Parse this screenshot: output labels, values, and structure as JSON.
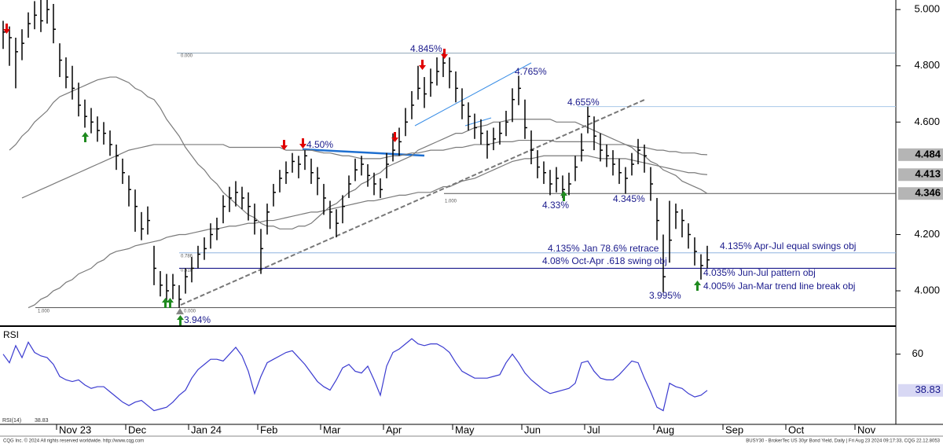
{
  "chart_data": {
    "type": "ohlc",
    "categories": [
      null,
      null,
      null,
      null,
      null,
      null,
      null,
      null,
      null,
      "Nov 23",
      null,
      null,
      null,
      null,
      null,
      null,
      null,
      null,
      null,
      null,
      "Dec",
      null,
      null,
      null,
      null,
      null,
      null,
      null,
      null,
      null,
      "Jan 24",
      null,
      null,
      null,
      null,
      null,
      null,
      null,
      null,
      null,
      null,
      "Feb",
      null,
      null,
      null,
      null,
      null,
      null,
      null,
      null,
      null,
      "Mar",
      null,
      null,
      null,
      null,
      null,
      null,
      null,
      null,
      null,
      "Apr",
      null,
      null,
      null,
      null,
      null,
      null,
      null,
      null,
      null,
      null,
      "May",
      null,
      null,
      null,
      null,
      null,
      null,
      null,
      null,
      null,
      null,
      "Jun",
      null,
      null,
      null,
      null,
      null,
      null,
      null,
      null,
      null,
      "Jul",
      null,
      null,
      null,
      null,
      null,
      null,
      null,
      null,
      null,
      null,
      "Aug",
      null,
      null,
      null,
      null,
      null,
      null,
      null,
      null,
      null,
      null,
      "Sep",
      null,
      null,
      null,
      null,
      null,
      null,
      null,
      null,
      null,
      "Oct",
      null,
      null,
      null,
      null,
      null,
      null,
      null,
      null,
      null,
      null,
      "Nov",
      null,
      null,
      null,
      null,
      null
    ],
    "high": [
      4.96,
      4.94,
      4.9,
      4.93,
      4.99,
      5.03,
      5.04,
      5.05,
      5.02,
      4.88,
      4.83,
      4.8,
      4.74,
      4.68,
      4.65,
      4.62,
      4.6,
      4.57,
      4.52,
      4.47,
      4.41,
      4.36,
      4.28,
      4.3,
      4.16,
      4.07,
      4.06,
      4.06,
      4.02,
      4.08,
      4.12,
      4.16,
      4.19,
      4.24,
      4.26,
      4.34,
      4.37,
      4.39,
      4.37,
      4.35,
      4.31,
      4.22,
      4.31,
      4.38,
      4.43,
      4.46,
      4.49,
      4.48,
      4.5,
      4.47,
      4.44,
      4.38,
      4.32,
      4.29,
      4.34,
      4.41,
      4.47,
      4.48,
      4.45,
      4.42,
      4.4,
      4.49,
      4.56,
      4.58,
      4.65,
      4.71,
      4.8,
      4.76,
      4.79,
      4.83,
      4.845,
      4.83,
      4.78,
      4.72,
      4.67,
      4.63,
      4.61,
      4.57,
      4.58,
      4.6,
      4.64,
      4.72,
      4.765,
      4.68,
      4.57,
      4.5,
      4.46,
      4.43,
      4.44,
      4.41,
      4.42,
      4.48,
      4.56,
      4.655,
      4.62,
      4.56,
      4.52,
      4.5,
      4.47,
      4.44,
      4.49,
      4.54,
      4.52,
      4.44,
      4.33,
      4.2,
      4.32,
      4.31,
      4.29,
      4.24,
      4.19,
      4.13,
      4.16,
      null,
      null,
      null,
      null,
      null,
      null,
      null,
      null,
      null,
      null,
      null,
      null,
      null,
      null,
      null,
      null,
      null,
      null,
      null,
      null,
      null,
      null,
      null,
      null,
      null,
      null,
      null,
      null,
      null
    ],
    "low": [
      4.86,
      4.8,
      4.72,
      4.82,
      4.9,
      4.93,
      4.92,
      4.95,
      4.88,
      4.76,
      4.72,
      4.68,
      4.62,
      4.58,
      4.56,
      4.53,
      4.52,
      4.48,
      4.43,
      4.38,
      4.3,
      4.21,
      4.18,
      4.2,
      4.02,
      3.98,
      3.96,
      3.97,
      3.94,
      3.99,
      4.03,
      4.08,
      4.11,
      4.15,
      4.18,
      4.24,
      4.28,
      4.3,
      4.29,
      4.25,
      4.2,
      4.06,
      4.2,
      4.3,
      4.35,
      4.38,
      4.42,
      4.4,
      4.43,
      4.38,
      4.34,
      4.27,
      4.22,
      4.19,
      4.24,
      4.33,
      4.39,
      4.41,
      4.37,
      4.34,
      4.33,
      4.4,
      4.46,
      4.48,
      4.55,
      4.61,
      4.68,
      4.65,
      4.69,
      4.73,
      4.76,
      4.72,
      4.67,
      4.61,
      4.57,
      4.54,
      4.52,
      4.47,
      4.5,
      4.52,
      4.55,
      4.6,
      4.66,
      4.54,
      4.45,
      4.4,
      4.38,
      4.34,
      4.35,
      4.33,
      4.34,
      4.39,
      4.46,
      4.56,
      4.5,
      4.46,
      4.44,
      4.41,
      4.38,
      4.345,
      4.41,
      4.45,
      4.42,
      4.32,
      4.18,
      3.995,
      4.1,
      4.22,
      4.19,
      4.15,
      4.09,
      4.04,
      4.08,
      null,
      null,
      null,
      null,
      null,
      null,
      null,
      null,
      null,
      null,
      null,
      null,
      null,
      null,
      null,
      null,
      null,
      null,
      null,
      null,
      null,
      null,
      null,
      null,
      null,
      null,
      null,
      null,
      null
    ],
    "close": [
      4.92,
      4.9,
      4.85,
      4.88,
      4.95,
      4.98,
      4.96,
      5.0,
      4.93,
      4.82,
      4.76,
      4.72,
      4.66,
      4.62,
      4.6,
      4.57,
      4.56,
      4.52,
      4.48,
      4.42,
      4.36,
      4.3,
      4.22,
      4.25,
      4.08,
      4.02,
      4.0,
      4.02,
      3.97,
      4.05,
      4.08,
      4.13,
      4.15,
      4.2,
      4.22,
      4.3,
      4.33,
      4.35,
      4.33,
      4.3,
      4.25,
      4.15,
      4.28,
      4.35,
      4.4,
      4.42,
      4.46,
      4.45,
      4.48,
      4.42,
      4.4,
      4.33,
      4.28,
      4.24,
      4.3,
      4.38,
      4.43,
      4.45,
      4.41,
      4.38,
      4.36,
      4.45,
      4.5,
      4.53,
      4.6,
      4.66,
      4.72,
      4.7,
      4.74,
      4.78,
      4.81,
      4.78,
      4.72,
      4.66,
      4.62,
      4.58,
      4.56,
      4.52,
      4.54,
      4.56,
      4.6,
      4.68,
      4.72,
      4.58,
      4.5,
      4.44,
      4.42,
      4.38,
      4.4,
      4.36,
      4.38,
      4.44,
      4.5,
      4.62,
      4.55,
      4.5,
      4.48,
      4.45,
      4.42,
      4.4,
      4.45,
      4.5,
      4.48,
      4.38,
      4.25,
      4.05,
      4.18,
      4.28,
      4.25,
      4.2,
      4.14,
      4.09,
      4.11,
      null,
      null,
      null,
      null,
      null,
      null,
      null,
      null,
      null,
      null,
      null,
      null,
      null,
      null,
      null,
      null,
      null,
      null,
      null,
      null,
      null,
      null,
      null,
      null,
      null,
      null,
      null,
      null,
      null
    ],
    "color": "#000000",
    "moving_averages": [
      {
        "color": "#7a7a7a",
        "values": [
          null,
          null,
          null,
          4.33,
          4.34,
          4.35,
          4.36,
          4.37,
          4.38,
          4.39,
          4.4,
          4.41,
          4.42,
          4.43,
          4.44,
          4.45,
          4.46,
          4.47,
          4.48,
          4.49,
          4.5,
          4.505,
          4.51,
          4.515,
          4.52,
          4.52,
          4.52,
          4.52,
          4.52,
          4.52,
          4.52,
          4.52,
          4.52,
          4.52,
          4.52,
          4.52,
          4.51,
          4.51,
          4.51,
          4.51,
          4.51,
          4.51,
          4.51,
          4.51,
          4.51,
          4.5,
          4.5,
          4.5,
          4.5,
          4.5,
          4.495,
          4.49,
          4.49,
          4.485,
          4.48,
          4.48,
          4.475,
          4.47,
          4.47,
          4.47,
          4.47,
          4.475,
          4.48,
          4.48,
          4.485,
          4.49,
          4.49,
          4.495,
          4.5,
          4.5,
          4.5,
          4.505,
          4.51,
          4.51,
          4.515,
          4.52,
          4.52,
          4.52,
          4.525,
          4.53,
          4.53,
          4.53,
          4.535,
          4.535,
          4.535,
          4.535,
          4.535,
          4.535,
          4.53,
          4.53,
          4.53,
          4.53,
          4.53,
          4.53,
          4.53,
          4.52,
          4.52,
          4.52,
          4.52,
          4.52,
          4.515,
          4.51,
          4.51,
          4.505,
          4.5,
          4.5,
          4.495,
          4.495,
          4.49,
          4.49,
          4.49,
          4.485,
          4.484,
          null,
          null,
          null,
          null,
          null,
          null,
          null,
          null,
          null,
          null,
          null,
          null,
          null,
          null,
          null,
          null,
          null,
          null,
          null,
          null,
          null,
          null,
          null,
          null,
          null,
          null,
          null,
          null,
          null
        ]
      },
      {
        "color": "#7a7a7a",
        "values": [
          null,
          null,
          null,
          null,
          3.94,
          3.95,
          3.97,
          3.98,
          4.0,
          4.01,
          4.03,
          4.04,
          4.06,
          4.07,
          4.08,
          4.1,
          4.11,
          4.13,
          4.14,
          4.145,
          4.15,
          4.16,
          4.165,
          4.17,
          4.175,
          4.18,
          4.19,
          4.195,
          4.2,
          4.2,
          4.205,
          4.21,
          4.215,
          4.22,
          4.22,
          4.225,
          4.23,
          4.23,
          4.235,
          4.24,
          4.24,
          4.245,
          4.25,
          4.25,
          4.255,
          4.26,
          4.265,
          4.27,
          4.275,
          4.28,
          4.28,
          4.285,
          4.29,
          4.295,
          4.3,
          4.305,
          4.31,
          4.315,
          4.32,
          4.32,
          4.325,
          4.33,
          4.335,
          4.34,
          4.34,
          4.345,
          4.35,
          4.35,
          4.35,
          4.36,
          4.37,
          4.37,
          4.38,
          4.39,
          4.395,
          4.4,
          4.41,
          4.42,
          4.43,
          4.44,
          4.45,
          4.46,
          4.465,
          4.47,
          4.47,
          4.475,
          4.48,
          4.48,
          4.48,
          4.48,
          4.48,
          4.48,
          4.48,
          4.48,
          4.475,
          4.47,
          4.47,
          4.47,
          4.47,
          4.47,
          4.465,
          4.46,
          4.455,
          4.45,
          4.445,
          4.44,
          4.435,
          4.43,
          4.425,
          4.42,
          4.42,
          4.415,
          4.413,
          null,
          null,
          null,
          null,
          null,
          null,
          null,
          null,
          null,
          null,
          null,
          null,
          null,
          null,
          null,
          null,
          null,
          null,
          null,
          null,
          null,
          null,
          null,
          null,
          null,
          null,
          null,
          null,
          null
        ]
      },
      {
        "color": "#7a7a7a",
        "values": [
          null,
          4.5,
          4.52,
          4.55,
          4.57,
          4.6,
          4.62,
          4.64,
          4.67,
          4.69,
          4.7,
          4.71,
          4.72,
          4.73,
          4.74,
          4.75,
          4.755,
          4.76,
          4.76,
          4.75,
          4.74,
          4.72,
          4.71,
          4.69,
          4.68,
          4.65,
          4.61,
          4.58,
          4.55,
          4.51,
          4.48,
          4.45,
          4.43,
          4.4,
          4.38,
          4.35,
          4.33,
          4.31,
          4.29,
          4.27,
          4.26,
          4.24,
          4.23,
          4.23,
          4.22,
          4.22,
          4.22,
          4.23,
          4.23,
          4.24,
          4.26,
          4.28,
          4.3,
          4.31,
          4.33,
          4.35,
          4.36,
          4.38,
          4.39,
          4.41,
          4.42,
          4.44,
          4.45,
          4.46,
          4.47,
          4.48,
          4.5,
          4.51,
          4.52,
          4.53,
          4.54,
          4.55,
          4.56,
          4.56,
          4.57,
          4.58,
          4.585,
          4.59,
          4.6,
          4.6,
          4.605,
          4.61,
          4.61,
          4.61,
          4.61,
          4.61,
          4.61,
          4.61,
          4.6,
          4.6,
          4.6,
          4.6,
          4.59,
          4.58,
          4.57,
          4.56,
          4.55,
          4.54,
          4.53,
          4.52,
          4.51,
          4.49,
          4.48,
          4.46,
          4.45,
          4.43,
          4.42,
          4.41,
          4.39,
          4.38,
          4.37,
          4.36,
          4.346,
          null,
          null,
          null,
          null,
          null,
          null,
          null,
          null,
          null,
          null,
          null,
          null,
          null,
          null,
          null,
          null,
          null,
          null,
          null,
          null,
          null,
          null,
          null,
          null,
          null,
          null,
          null,
          null,
          null
        ]
      }
    ],
    "ylim": [
      3.88,
      5.034
    ],
    "yticks": [
      {
        "value": 4,
        "label": "4.000"
      },
      {
        "value": 4.2,
        "label": "4.200"
      },
      {
        "value": 4.6,
        "label": "4.600"
      },
      {
        "value": 4.8,
        "label": "4.800"
      },
      {
        "value": 5,
        "label": "5.000"
      }
    ],
    "levels": [
      {
        "value": 4.845,
        "color": "#8fa4b8"
      },
      {
        "value": 4.346,
        "color": "#555555"
      },
      {
        "value": 4.135,
        "color": "#8fb4e0"
      },
      {
        "value": 4.08,
        "color": "#1a1a8c"
      },
      {
        "value": 3.94,
        "color": "#555555"
      }
    ],
    "fib_labels": [
      "0.000",
      "1.000",
      "0.786",
      "0.618",
      "1.000",
      "0.000"
    ],
    "annotations": [
      "4.845%",
      "4.765%",
      "4.655%",
      "4.50%",
      "4.33%",
      "4.345%",
      "3.94%",
      "3.995%",
      "4.135% Jan 78.6% retrace",
      "4.08% Oct-Apr .618 swing obj",
      "4.135% Apr-Jul equal swings obj",
      "4.035% Jun-Jul pattern obj",
      "4.005% Jan-Mar trend line break obj"
    ],
    "annotation_color": "#1a1a8c",
    "rsi": {
      "type": "line",
      "title": "RSI",
      "legend": "RSI(14)",
      "color": "#3b3bd0",
      "ylim": [
        19,
        75
      ],
      "yticks": [
        60
      ],
      "values": [
        60,
        55,
        65,
        58,
        67,
        61,
        59,
        58,
        54,
        47,
        45,
        44,
        45,
        42,
        40,
        41,
        41,
        38,
        35,
        32,
        30,
        32,
        33,
        30,
        27,
        28,
        29,
        32,
        36,
        39,
        46,
        51,
        54,
        57,
        57,
        56,
        60,
        64,
        59,
        50,
        37,
        47,
        55,
        57,
        59,
        61,
        62,
        58,
        54,
        49,
        44,
        41,
        39,
        45,
        52,
        54,
        50,
        49,
        53,
        45,
        36,
        53,
        61,
        63,
        66,
        69,
        66,
        65,
        66,
        66,
        64,
        61,
        55,
        50,
        48,
        46,
        46,
        46,
        47,
        48,
        55,
        60,
        55,
        49,
        45,
        42,
        39,
        37,
        38,
        39,
        40,
        43,
        55,
        56,
        50,
        46,
        45,
        45,
        48,
        52,
        56,
        55,
        46,
        38,
        29,
        27,
        43,
        41,
        40,
        37,
        35,
        36,
        38.83,
        null,
        null,
        null,
        null,
        null,
        null,
        null,
        null,
        null,
        null,
        null,
        null,
        null,
        null,
        null,
        null,
        null,
        null,
        null,
        null,
        null,
        null,
        null,
        null,
        null,
        null,
        null,
        null,
        null
      ]
    }
  },
  "footer": {
    "left": "CQG Inc. © 2024 All rights reserved worldwide. http://www.cqg.com",
    "right": "BUSY30 - BrokerTec US 30yr Bond Yield, Daily | Fri Aug 23 2024 09:17:33, CQG 22.12.8053"
  }
}
